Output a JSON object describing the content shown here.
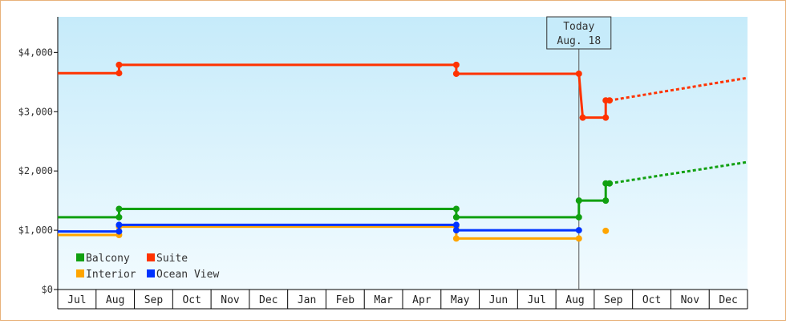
{
  "chart_data": {
    "type": "line",
    "step": true,
    "ylim": [
      0,
      4600
    ],
    "y_ticks": [
      {
        "value": 0,
        "label": "$0"
      },
      {
        "value": 1000,
        "label": "$1,000"
      },
      {
        "value": 2000,
        "label": "$2,000"
      },
      {
        "value": 3000,
        "label": "$3,000"
      },
      {
        "value": 4000,
        "label": "$4,000"
      }
    ],
    "x_ticks": [
      "Jul",
      "Aug",
      "Sep",
      "Oct",
      "Nov",
      "Dec",
      "Jan",
      "Feb",
      "Mar",
      "Apr",
      "May",
      "Jun",
      "Jul",
      "Aug",
      "Sep",
      "Oct",
      "Nov",
      "Dec"
    ],
    "x_range_months": [
      -0.5,
      17.5
    ],
    "today": {
      "line1": "Today",
      "line2": "Aug. 18",
      "x": 13.1
    },
    "grid": false,
    "legend_position": "bottom-left",
    "series": [
      {
        "name": "Balcony",
        "color": "#11a011",
        "points": [
          [
            -0.5,
            1220
          ],
          [
            1.1,
            1220
          ],
          [
            1.1,
            1360
          ],
          [
            9.9,
            1360
          ],
          [
            9.9,
            1220
          ],
          [
            13.1,
            1220
          ],
          [
            13.1,
            1500
          ],
          [
            13.8,
            1500
          ],
          [
            13.8,
            1790
          ],
          [
            13.9,
            1790
          ]
        ],
        "forecast": [
          [
            13.9,
            1790
          ],
          [
            17.5,
            2150
          ]
        ]
      },
      {
        "name": "Suite",
        "color": "#ff3300",
        "points": [
          [
            -0.5,
            3650
          ],
          [
            1.1,
            3650
          ],
          [
            1.1,
            3790
          ],
          [
            9.9,
            3790
          ],
          [
            9.9,
            3640
          ],
          [
            13.1,
            3640
          ],
          [
            13.2,
            2900
          ],
          [
            13.8,
            2900
          ],
          [
            13.8,
            3190
          ],
          [
            13.9,
            3190
          ]
        ],
        "forecast": [
          [
            13.9,
            3190
          ],
          [
            17.5,
            3570
          ]
        ]
      },
      {
        "name": "Interior",
        "color": "#ffa500",
        "points": [
          [
            -0.5,
            920
          ],
          [
            1.1,
            920
          ],
          [
            1.1,
            1060
          ],
          [
            9.9,
            1060
          ],
          [
            9.9,
            860
          ],
          [
            13.1,
            860
          ]
        ],
        "extra_points": [
          [
            13.8,
            990
          ]
        ]
      },
      {
        "name": "Ocean View",
        "color": "#0033ff",
        "points": [
          [
            -0.5,
            980
          ],
          [
            1.1,
            980
          ],
          [
            1.1,
            1090
          ],
          [
            9.9,
            1090
          ],
          [
            9.9,
            1000
          ],
          [
            13.1,
            1000
          ]
        ]
      }
    ]
  }
}
